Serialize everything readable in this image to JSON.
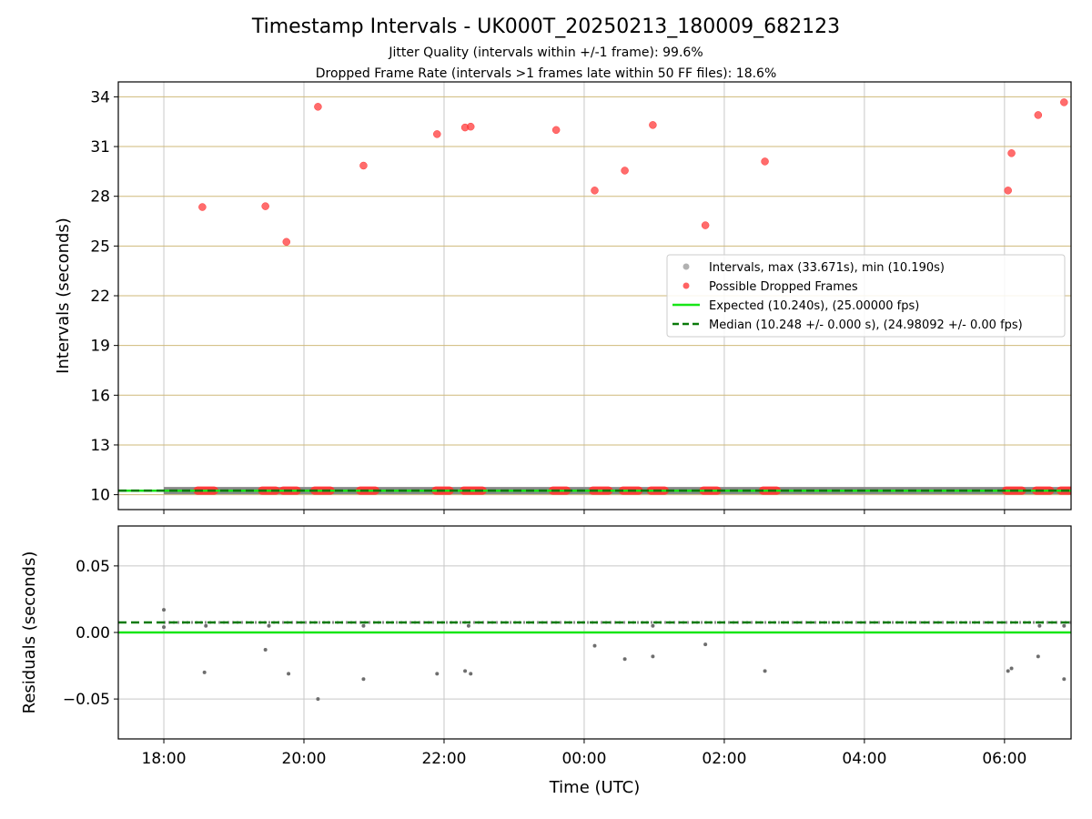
{
  "title": "Timestamp Intervals - UK000T_20250213_180009_682123",
  "subtitle1": "Jitter Quality (intervals within +/-1 frame): 99.6%",
  "subtitle2": "Dropped Frame Rate (intervals >1 frames late within 50 FF files): 18.6%",
  "colors": {
    "interval_points": "#9e9e9e",
    "dropped_points": "#ff3b3b",
    "expected_line": "#17e617",
    "median_line": "#0a7a0a",
    "top_grid": "#cfb97a",
    "grid": "#c8c8c8"
  },
  "chart_data": [
    {
      "type": "scatter",
      "ylabel": "Intervals (seconds)",
      "ylim": [
        9.1,
        34.9
      ],
      "yticks": [
        10,
        13,
        16,
        19,
        22,
        25,
        28,
        31,
        34
      ],
      "ytick_labels": [
        "10",
        "13",
        "16",
        "19",
        "22",
        "25",
        "28",
        "31",
        "34"
      ],
      "xlim_hours": [
        17.35,
        30.95
      ],
      "xticks_hours": [
        18,
        20,
        22,
        24,
        26,
        28,
        30
      ],
      "grid": true,
      "legend_position": "center-right",
      "legend": [
        "Intervals, max (33.671s), min (10.190s)",
        "Possible Dropped Frames",
        "Expected (10.240s), (25.00000 fps)",
        "Median (10.248 +/- 0.000 s), (24.98092 +/- 0.00 fps)"
      ],
      "series": [
        {
          "name": "Intervals, max (33.671s), min (10.190s)",
          "kind": "band",
          "x_range": [
            18.0,
            30.95
          ],
          "y": 10.248
        },
        {
          "name": "Possible Dropped Frames",
          "kind": "points",
          "points": [
            [
              18.55,
              27.35
            ],
            [
              19.45,
              27.4
            ],
            [
              19.75,
              25.25
            ],
            [
              20.2,
              33.4
            ],
            [
              20.85,
              29.85
            ],
            [
              21.9,
              31.75
            ],
            [
              22.3,
              32.15
            ],
            [
              22.38,
              32.2
            ],
            [
              23.6,
              32.0
            ],
            [
              24.15,
              28.35
            ],
            [
              24.58,
              29.55
            ],
            [
              24.98,
              32.3
            ],
            [
              25.73,
              26.25
            ],
            [
              26.58,
              30.1
            ],
            [
              30.05,
              28.35
            ],
            [
              30.1,
              30.6
            ],
            [
              30.48,
              32.9
            ],
            [
              30.85,
              33.67
            ]
          ],
          "band_clusters": [
            [
              18.48,
              18.72
            ],
            [
              19.4,
              19.6
            ],
            [
              19.7,
              19.9
            ],
            [
              20.15,
              20.38
            ],
            [
              20.8,
              21.02
            ],
            [
              21.88,
              22.08
            ],
            [
              22.28,
              22.55
            ],
            [
              23.55,
              23.75
            ],
            [
              24.12,
              24.35
            ],
            [
              24.55,
              24.78
            ],
            [
              24.95,
              25.15
            ],
            [
              25.7,
              25.9
            ],
            [
              26.55,
              26.75
            ],
            [
              30.02,
              30.25
            ],
            [
              30.45,
              30.65
            ],
            [
              30.8,
              30.95
            ]
          ],
          "band_y": 10.248
        },
        {
          "name": "Expected (10.240s), (25.00000 fps)",
          "kind": "hline",
          "y": 10.24
        },
        {
          "name": "Median (10.248 +/- 0.000 s), (24.98092 +/- 0.00 fps)",
          "kind": "hline-dashed",
          "y": 10.248
        }
      ]
    },
    {
      "type": "scatter",
      "ylabel": "Residuals (seconds)",
      "xlabel": "Time (UTC)",
      "ylim": [
        -0.08,
        0.08
      ],
      "yticks": [
        0.05,
        0.0,
        -0.05
      ],
      "ytick_labels": [
        "0.05",
        "0.00",
        "−0.05"
      ],
      "xlim_hours": [
        17.35,
        30.95
      ],
      "xticks_hours": [
        18,
        20,
        22,
        24,
        26,
        28,
        30
      ],
      "xtick_labels": [
        "18:00",
        "20:00",
        "22:00",
        "00:00",
        "02:00",
        "04:00",
        "06:00"
      ],
      "grid": true,
      "series": [
        {
          "kind": "residual-band",
          "x_range": [
            18.0,
            30.95
          ],
          "y": 0.0075
        },
        {
          "kind": "points",
          "points": [
            [
              18.0,
              0.017
            ],
            [
              18.0,
              0.004
            ],
            [
              18.58,
              -0.03
            ],
            [
              19.45,
              -0.013
            ],
            [
              19.78,
              -0.031
            ],
            [
              20.2,
              -0.05
            ],
            [
              20.85,
              -0.035
            ],
            [
              21.9,
              -0.031
            ],
            [
              22.3,
              -0.029
            ],
            [
              22.38,
              -0.031
            ],
            [
              24.15,
              -0.01
            ],
            [
              24.58,
              -0.02
            ],
            [
              24.98,
              -0.018
            ],
            [
              25.73,
              -0.009
            ],
            [
              26.58,
              -0.029
            ],
            [
              30.05,
              -0.029
            ],
            [
              30.1,
              -0.027
            ],
            [
              30.48,
              -0.018
            ],
            [
              30.85,
              -0.035
            ],
            [
              18.6,
              0.005
            ],
            [
              19.5,
              0.005
            ],
            [
              20.85,
              0.005
            ],
            [
              30.5,
              0.005
            ],
            [
              30.85,
              0.005
            ],
            [
              24.98,
              0.005
            ],
            [
              22.35,
              0.005
            ]
          ]
        },
        {
          "kind": "hline",
          "y": 0.0
        },
        {
          "kind": "hline-dashed",
          "y": 0.0075
        }
      ]
    }
  ]
}
